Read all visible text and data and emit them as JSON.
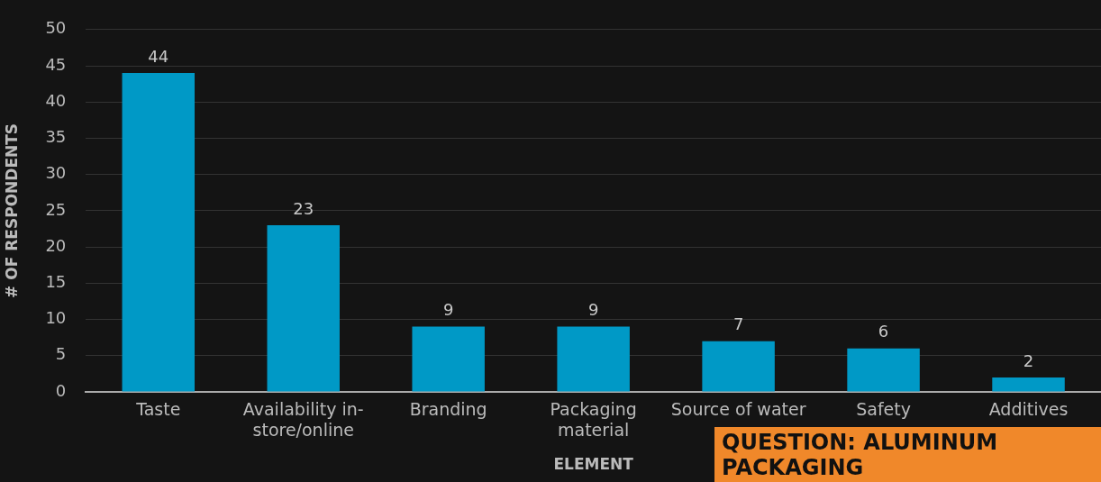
{
  "chart_data": {
    "type": "bar",
    "xlabel": "ELEMENT",
    "ylabel": "# OF RESPONDENTS",
    "categories": [
      "Taste",
      "Availability in-\nstore/online",
      "Branding",
      "Packaging\nmaterial",
      "Source of water",
      "Safety",
      "Additives"
    ],
    "values": [
      44,
      23,
      9,
      9,
      7,
      6,
      2
    ],
    "color": "#0099c6",
    "ylim": [
      0,
      50
    ],
    "yticks": [
      0,
      5,
      10,
      15,
      20,
      25,
      30,
      35,
      40,
      45,
      50
    ],
    "grid": "y",
    "data_labels": true,
    "annotations": [
      "QUESTION: ALUMINUM PACKAGING"
    ]
  }
}
